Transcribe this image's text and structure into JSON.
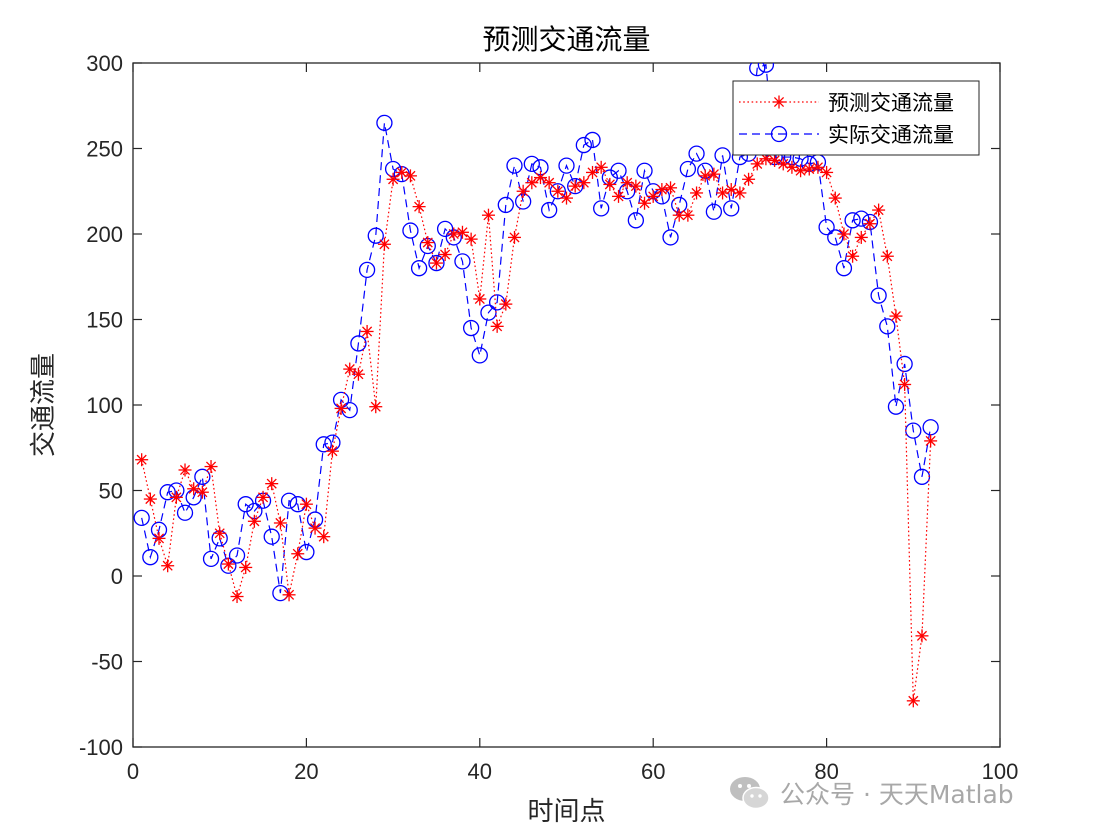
{
  "chart_data": {
    "type": "line",
    "title": "预测交通流量",
    "xlabel": "时间点",
    "ylabel": "交通流量",
    "xlim": [
      0,
      100
    ],
    "ylim": [
      -100,
      300
    ],
    "xticks": [
      0,
      20,
      40,
      60,
      80,
      100
    ],
    "yticks": [
      -100,
      -50,
      0,
      50,
      100,
      150,
      200,
      250,
      300
    ],
    "grid": false,
    "legend_position": "top-right",
    "series": [
      {
        "name": "预测交通流量",
        "color": "#ff0000",
        "line_style": "dotted",
        "marker": "asterisk",
        "x": [
          1,
          2,
          3,
          4,
          5,
          6,
          7,
          8,
          9,
          10,
          11,
          12,
          13,
          14,
          15,
          16,
          17,
          18,
          19,
          20,
          21,
          22,
          23,
          24,
          25,
          26,
          27,
          28,
          29,
          30,
          31,
          32,
          33,
          34,
          35,
          36,
          37,
          38,
          39,
          40,
          41,
          42,
          43,
          44,
          45,
          46,
          47,
          48,
          49,
          50,
          51,
          52,
          53,
          54,
          55,
          56,
          57,
          58,
          59,
          60,
          61,
          62,
          63,
          64,
          65,
          66,
          67,
          68,
          69,
          70,
          71,
          72,
          73,
          74,
          75,
          76,
          77,
          78,
          79,
          80,
          81,
          82,
          83,
          84,
          85,
          86,
          87,
          88,
          89,
          90,
          91,
          92
        ],
        "values": [
          68,
          45,
          22,
          6,
          46,
          62,
          51,
          49,
          64,
          25,
          7,
          -12,
          5,
          32,
          46,
          54,
          31,
          -11,
          13,
          42,
          28,
          23,
          73,
          98,
          121,
          118,
          143,
          99,
          194,
          232,
          236,
          234,
          216,
          195,
          183,
          188,
          200,
          201,
          197,
          162,
          211,
          146,
          159,
          198,
          225,
          230,
          233,
          230,
          225,
          221,
          228,
          230,
          236,
          239,
          229,
          222,
          230,
          228,
          218,
          222,
          226,
          227,
          211,
          211,
          224,
          234,
          235,
          224,
          226,
          224,
          232,
          241,
          244,
          243,
          241,
          239,
          237,
          238,
          239,
          236,
          221,
          200,
          187,
          198,
          206,
          214,
          187,
          152,
          112,
          -73,
          -35,
          79
        ]
      },
      {
        "name": "实际交通流量",
        "color": "#0000ff",
        "line_style": "dashed",
        "marker": "circle",
        "x": [
          1,
          2,
          3,
          4,
          5,
          6,
          7,
          8,
          9,
          10,
          11,
          12,
          13,
          14,
          15,
          16,
          17,
          18,
          19,
          20,
          21,
          22,
          23,
          24,
          25,
          26,
          27,
          28,
          29,
          30,
          31,
          32,
          33,
          34,
          35,
          36,
          37,
          38,
          39,
          40,
          41,
          42,
          43,
          44,
          45,
          46,
          47,
          48,
          49,
          50,
          51,
          52,
          53,
          54,
          55,
          56,
          57,
          58,
          59,
          60,
          61,
          62,
          63,
          64,
          65,
          66,
          67,
          68,
          69,
          70,
          71,
          72,
          73,
          74,
          75,
          76,
          77,
          78,
          79,
          80,
          81,
          82,
          83,
          84,
          85,
          86,
          87,
          88,
          89,
          90,
          91,
          92
        ],
        "values": [
          34,
          11,
          27,
          49,
          50,
          37,
          46,
          58,
          10,
          22,
          6,
          12,
          42,
          38,
          44,
          23,
          -10,
          44,
          42,
          14,
          33,
          77,
          78,
          103,
          97,
          136,
          179,
          199,
          265,
          238,
          235,
          202,
          180,
          193,
          183,
          203,
          198,
          184,
          145,
          129,
          154,
          160,
          217,
          240,
          219,
          241,
          239,
          214,
          225,
          240,
          228,
          252,
          255,
          215,
          233,
          237,
          225,
          208,
          237,
          225,
          222,
          198,
          217,
          238,
          247,
          237,
          213,
          246,
          215,
          245,
          247,
          297,
          299,
          245,
          245,
          245,
          244,
          241,
          242,
          204,
          198,
          180,
          208,
          209,
          207,
          164,
          146,
          99,
          124,
          85,
          58,
          87
        ]
      }
    ]
  },
  "watermark": {
    "text": "公众号 · 天天Matlab",
    "icon": "wechat-icon",
    "color": "#9a9a9a"
  }
}
